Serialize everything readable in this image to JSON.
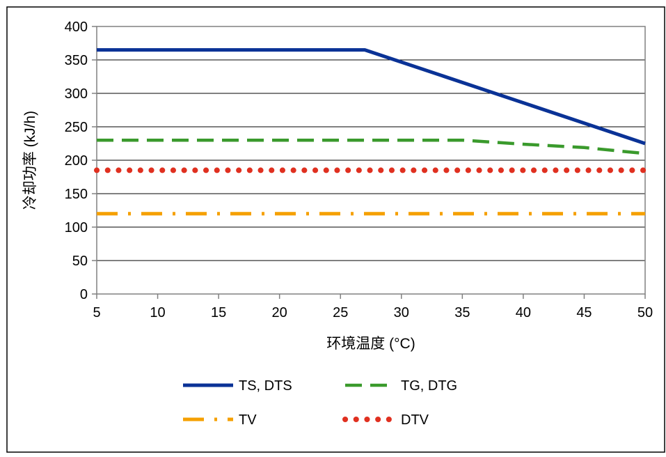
{
  "chart_data": {
    "type": "line",
    "title": "",
    "xlabel": "环境温度 (°C)",
    "ylabel": "冷却功率 (kJ/h)",
    "xlim": [
      5,
      50
    ],
    "ylim": [
      0,
      400
    ],
    "x_ticks": [
      5,
      10,
      15,
      20,
      25,
      30,
      35,
      40,
      45,
      50
    ],
    "y_ticks": [
      0,
      50,
      100,
      150,
      200,
      250,
      300,
      350,
      400
    ],
    "grid": "horizontal",
    "legend_position": "bottom",
    "series": [
      {
        "name": "TS, DTS",
        "color": "#0a3296",
        "style": "solid",
        "x": [
          5,
          27,
          50
        ],
        "y": [
          365,
          365,
          225
        ]
      },
      {
        "name": "TG, DTG",
        "color": "#3a9a2c",
        "style": "dashed",
        "x": [
          5,
          27,
          35,
          40,
          45,
          50
        ],
        "y": [
          230,
          230,
          230,
          224,
          219,
          210
        ]
      },
      {
        "name": "TV",
        "color": "#f5a000",
        "style": "dashdot",
        "x": [
          5,
          50
        ],
        "y": [
          120,
          120
        ]
      },
      {
        "name": "DTV",
        "color": "#e03020",
        "style": "dotted",
        "x": [
          5,
          50
        ],
        "y": [
          185,
          185
        ]
      }
    ]
  }
}
